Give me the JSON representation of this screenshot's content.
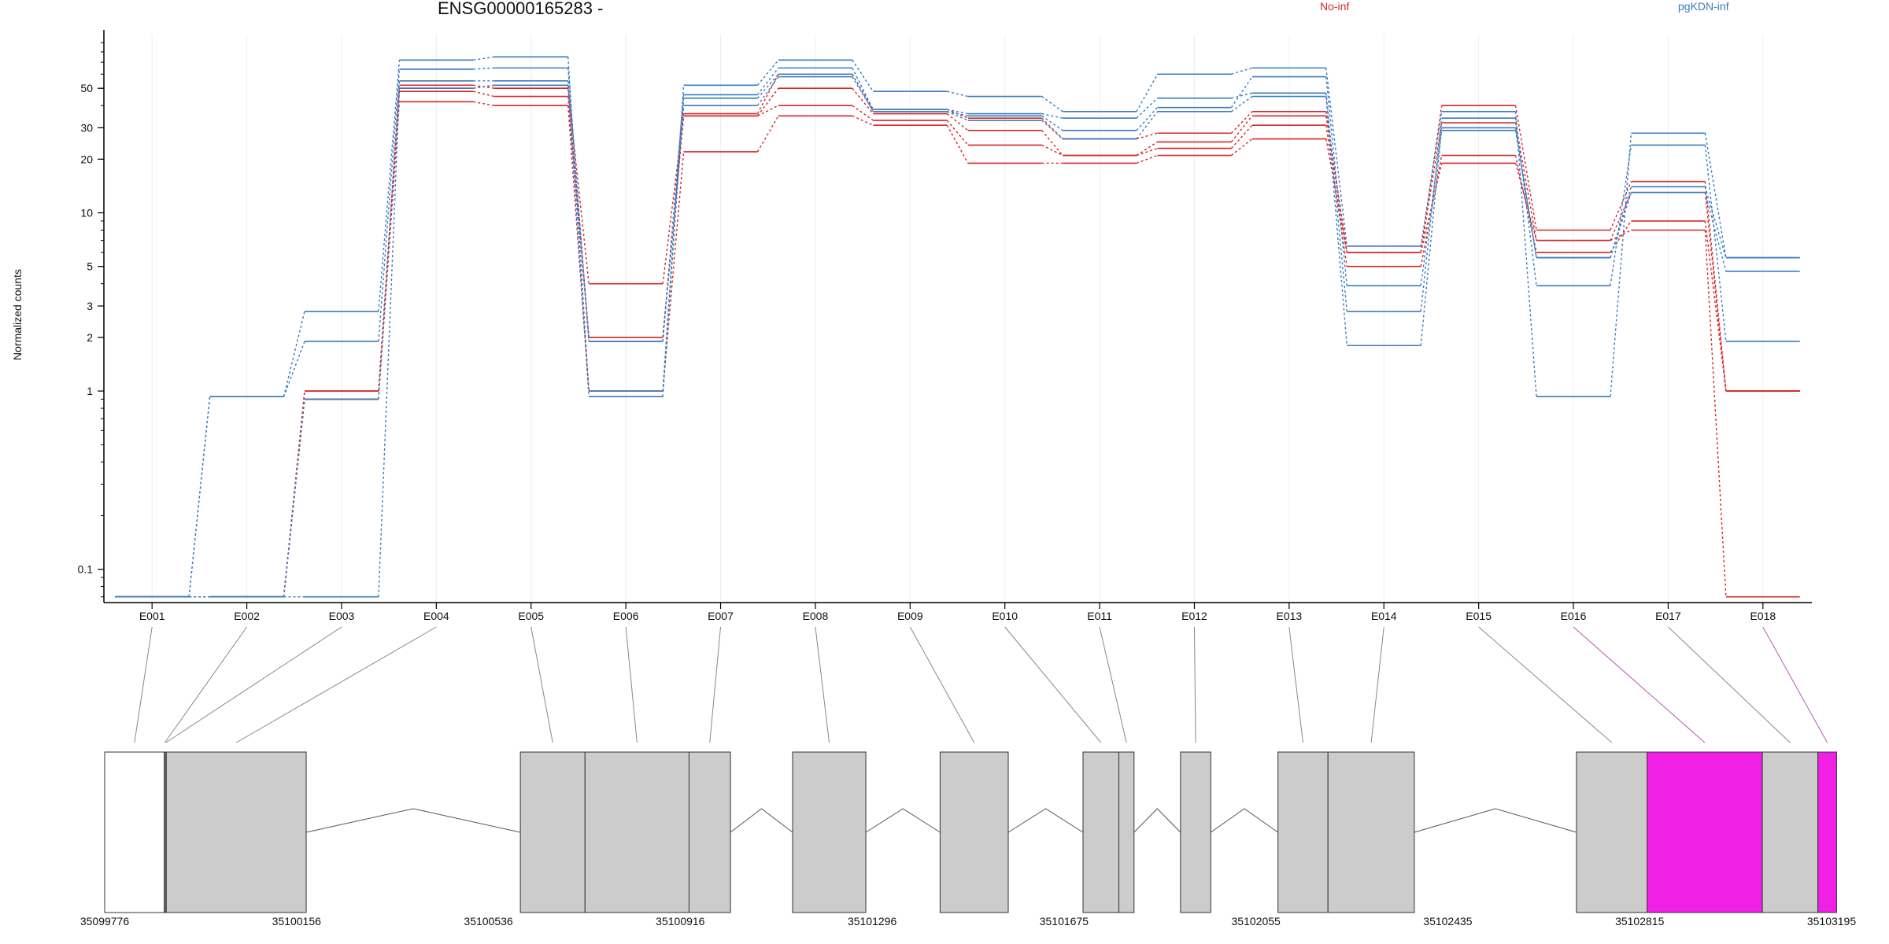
{
  "chart_data": {
    "type": "line",
    "title": "ENSG00000165283 -",
    "ylabel": "Normalized counts",
    "xlabel": "",
    "y_scale": "log",
    "ylim": [
      0.065,
      100
    ],
    "y_ticks": [
      {
        "v": 0.1,
        "label": "0.1"
      },
      {
        "v": 1,
        "label": "1"
      },
      {
        "v": 2,
        "label": "2"
      },
      {
        "v": 3,
        "label": "3"
      },
      {
        "v": 5,
        "label": "5"
      },
      {
        "v": 10,
        "label": "10"
      },
      {
        "v": 20,
        "label": "20"
      },
      {
        "v": 30,
        "label": "30"
      },
      {
        "v": 50,
        "label": "50"
      }
    ],
    "categories": [
      "E001",
      "E002",
      "E003",
      "E004",
      "E005",
      "E006",
      "E007",
      "E008",
      "E009",
      "E010",
      "E011",
      "E012",
      "E013",
      "E014",
      "E015",
      "E016",
      "E017",
      "E018"
    ],
    "legend": [
      {
        "name": "No-inf",
        "color": "#d62728"
      },
      {
        "name": "pgKDN-inf",
        "color": "#3a7bbf"
      }
    ],
    "series": [
      {
        "group": "No-inf",
        "values": [
          0.07,
          0.07,
          1.0,
          52,
          50,
          4.0,
          36,
          60,
          38,
          34,
          26,
          28,
          37,
          6.0,
          40,
          8.0,
          15,
          1.0
        ]
      },
      {
        "group": "No-inf",
        "values": [
          0.07,
          0.07,
          1.0,
          50,
          52,
          2.0,
          35,
          50,
          36,
          29,
          21,
          25,
          35,
          6.0,
          32,
          7.0,
          13,
          1.0
        ]
      },
      {
        "group": "No-inf",
        "values": [
          0.07,
          0.07,
          0.9,
          48,
          45,
          2.0,
          35,
          40,
          33,
          24,
          21,
          23,
          31,
          5.0,
          21,
          6.0,
          9.0,
          1.0
        ]
      },
      {
        "group": "No-inf",
        "values": [
          0.07,
          0.07,
          0.9,
          42,
          40,
          1.0,
          22,
          35,
          31,
          19,
          19,
          21,
          26,
          6.0,
          19,
          7.0,
          8.0,
          0.07
        ]
      },
      {
        "group": "pgKDN-inf",
        "values": [
          0.07,
          0.93,
          2.8,
          72,
          75,
          1.0,
          52,
          72,
          48,
          45,
          37,
          60,
          65,
          6.5,
          37,
          0.93,
          28,
          5.6
        ]
      },
      {
        "group": "pgKDN-inf",
        "values": [
          0.07,
          0.93,
          1.9,
          64,
          65,
          1.9,
          46,
          65,
          38,
          36,
          34,
          44,
          47,
          2.8,
          34,
          3.9,
          24,
          1.9
        ]
      },
      {
        "group": "pgKDN-inf",
        "values": [
          0.07,
          0.07,
          0.9,
          55,
          55,
          1.9,
          40,
          58,
          37,
          35,
          29,
          39,
          58,
          3.9,
          29,
          5.6,
          14,
          5.6
        ]
      },
      {
        "group": "pgKDN-inf",
        "values": [
          0.07,
          0.07,
          0.07,
          50,
          52,
          0.93,
          44,
          60,
          37,
          33,
          26,
          37,
          45,
          1.8,
          30,
          5.6,
          13,
          4.7
        ]
      }
    ],
    "genome_coordinates": [
      "35099776",
      "35100156",
      "35100536",
      "35100916",
      "35101296",
      "35101675",
      "35102055",
      "35102435",
      "35102815",
      "35103195"
    ],
    "genome_range": [
      35099776,
      35103195
    ],
    "exons": [
      {
        "id": "E001",
        "start": 35099776,
        "end": 35099894,
        "type": "utr"
      },
      {
        "id": "E002",
        "start": 35099894,
        "end": 35099896,
        "type": "utr"
      },
      {
        "id": "E003",
        "start": 35099896,
        "end": 35099898,
        "type": "exon"
      },
      {
        "id": "E004",
        "start": 35099898,
        "end": 35100175,
        "type": "exon"
      },
      {
        "id": "E005",
        "start": 35100599,
        "end": 35100727,
        "type": "exon"
      },
      {
        "id": "E006",
        "start": 35100727,
        "end": 35100933,
        "type": "exon"
      },
      {
        "id": "E007",
        "start": 35100933,
        "end": 35101015,
        "type": "exon"
      },
      {
        "id": "E008",
        "start": 35101138,
        "end": 35101283,
        "type": "exon"
      },
      {
        "id": "E009",
        "start": 35101430,
        "end": 35101565,
        "type": "exon"
      },
      {
        "id": "E010",
        "start": 35101713,
        "end": 35101784,
        "type": "exon"
      },
      {
        "id": "E011",
        "start": 35101784,
        "end": 35101814,
        "type": "exon"
      },
      {
        "id": "E012",
        "start": 35101906,
        "end": 35101966,
        "type": "exon"
      },
      {
        "id": "E013",
        "start": 35102099,
        "end": 35102198,
        "type": "exon"
      },
      {
        "id": "E014",
        "start": 35102198,
        "end": 35102369,
        "type": "exon"
      },
      {
        "id": "E015",
        "start": 35102690,
        "end": 35102830,
        "type": "exon"
      },
      {
        "id": "E016",
        "start": 35102830,
        "end": 35103058,
        "type": "significant"
      },
      {
        "id": "E017",
        "start": 35103058,
        "end": 35103168,
        "type": "exon"
      },
      {
        "id": "E018",
        "start": 35103168,
        "end": 35103205,
        "type": "significant"
      }
    ],
    "grid": true,
    "colors": {
      "no_inf": "#d62728",
      "pgkdn_inf": "#3a7bbf",
      "exon_fill": "#cccccc",
      "significant_fill": "#f020e6",
      "connector": "#888888",
      "significant_connector": "#b45ab4"
    }
  }
}
